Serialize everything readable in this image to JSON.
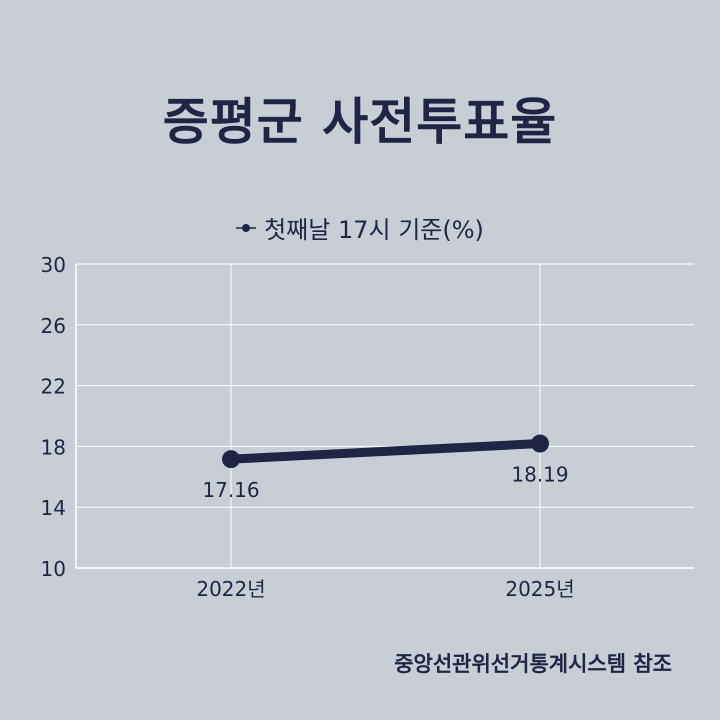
{
  "title": "증평군 사전투표율",
  "source": "중앙선관위선거통계시스템 참조",
  "colors": {
    "background": "#c9ced6",
    "series": "#1e2545",
    "grid": "#ffffff"
  },
  "chart_data": {
    "type": "line",
    "categories": [
      "2022년",
      "2025년"
    ],
    "series": [
      {
        "name": "첫째날 17시 기준(%)",
        "values": [
          17.16,
          18.19
        ]
      }
    ],
    "data_labels": [
      "17.16",
      "18.19"
    ],
    "yticks": [
      "10",
      "14",
      "18",
      "22",
      "26",
      "30"
    ],
    "ylim": [
      10,
      30
    ],
    "grid": true,
    "legend_position": "top-center"
  }
}
